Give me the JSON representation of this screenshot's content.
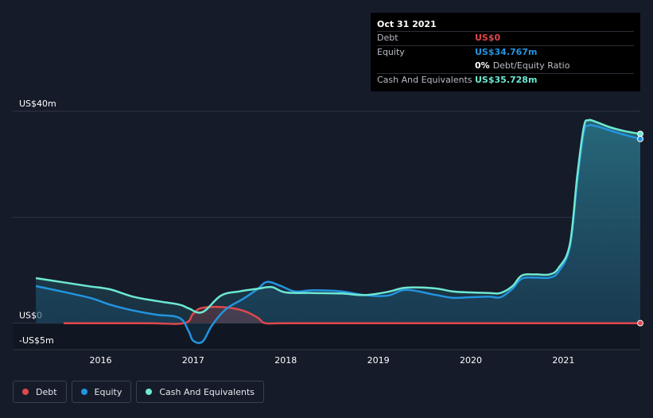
{
  "tooltip": {
    "date": "Oct 31 2021",
    "debt_label": "Debt",
    "debt_value": "US$0",
    "equity_label": "Equity",
    "equity_value": "US$34.767m",
    "ratio_value": "0%",
    "ratio_label": "Debt/Equity Ratio",
    "cash_label": "Cash And Equivalents",
    "cash_value": "US$35.728m"
  },
  "legend": [
    {
      "label": "Debt",
      "color": "#e0474c"
    },
    {
      "label": "Equity",
      "color": "#2394df"
    },
    {
      "label": "Cash And Equivalents",
      "color": "#6ee8d2"
    }
  ],
  "colors": {
    "debt": "#e0474c",
    "equity": "#2394df",
    "cash": "#6ee8d2",
    "grid": "#2e3443",
    "background": "#151b29"
  },
  "chart_data": {
    "type": "line",
    "title": "",
    "xlabel": "",
    "ylabel": "",
    "ylim": [
      -5,
      40
    ],
    "y_ticks": [
      {
        "value": 40,
        "label": "US$40m"
      },
      {
        "value": 0,
        "label": "US$0"
      },
      {
        "value": -5,
        "label": "-US$5m"
      }
    ],
    "x_ticks": [
      {
        "value": 2016.0,
        "label": "2016"
      },
      {
        "value": 2017.0,
        "label": "2017"
      },
      {
        "value": 2018.0,
        "label": "2018"
      },
      {
        "value": 2019.0,
        "label": "2019"
      },
      {
        "value": 2020.0,
        "label": "2020"
      },
      {
        "value": 2021.0,
        "label": "2021"
      }
    ],
    "xlim": [
      2015.05,
      2021.83
    ],
    "series": [
      {
        "name": "Cash And Equivalents",
        "x": [
          2015.3,
          2015.6,
          2015.9,
          2016.1,
          2016.35,
          2016.6,
          2016.85,
          2016.95,
          2017.1,
          2017.3,
          2017.5,
          2017.7,
          2017.85,
          2018.0,
          2018.3,
          2018.6,
          2018.85,
          2019.1,
          2019.3,
          2019.6,
          2019.8,
          2020.0,
          2020.2,
          2020.32,
          2020.45,
          2020.55,
          2020.7,
          2020.85,
          2020.95,
          2021.07,
          2021.15,
          2021.22,
          2021.27,
          2021.35,
          2021.5,
          2021.65,
          2021.83
        ],
        "values": [
          8.5,
          7.7,
          6.9,
          6.4,
          5.0,
          4.2,
          3.5,
          2.8,
          2.1,
          5.2,
          6.0,
          6.5,
          6.8,
          5.8,
          5.7,
          5.6,
          5.3,
          5.9,
          6.7,
          6.6,
          6.0,
          5.8,
          5.7,
          5.7,
          7.0,
          9.0,
          9.2,
          9.2,
          10.5,
          15.0,
          28.0,
          37.0,
          38.3,
          38.0,
          37.0,
          36.3,
          35.728
        ]
      },
      {
        "name": "Equity",
        "x": [
          2015.3,
          2015.6,
          2015.9,
          2016.1,
          2016.35,
          2016.6,
          2016.85,
          2016.95,
          2017.0,
          2017.1,
          2017.2,
          2017.35,
          2017.55,
          2017.7,
          2017.8,
          2017.95,
          2018.1,
          2018.3,
          2018.6,
          2018.85,
          2019.1,
          2019.3,
          2019.6,
          2019.8,
          2020.0,
          2020.2,
          2020.32,
          2020.45,
          2020.55,
          2020.7,
          2020.85,
          2020.95,
          2021.07,
          2021.15,
          2021.22,
          2021.27,
          2021.35,
          2021.5,
          2021.65,
          2021.83
        ],
        "values": [
          7.0,
          5.9,
          4.7,
          3.5,
          2.4,
          1.6,
          1.0,
          -1.5,
          -3.3,
          -3.5,
          -0.5,
          2.6,
          4.7,
          6.5,
          7.8,
          7.0,
          6.0,
          6.2,
          6.0,
          5.3,
          5.2,
          6.3,
          5.4,
          4.8,
          4.9,
          5.0,
          4.9,
          6.5,
          8.4,
          8.6,
          8.6,
          9.8,
          14.5,
          27.0,
          36.0,
          37.3,
          37.2,
          36.4,
          35.6,
          34.767
        ]
      },
      {
        "name": "Debt",
        "x": [
          2015.6,
          2016.5,
          2016.9,
          2017.0,
          2017.1,
          2017.35,
          2017.55,
          2017.7,
          2017.78,
          2018.0,
          2019.0,
          2020.0,
          2021.0,
          2021.83
        ],
        "values": [
          0,
          0,
          0,
          1.8,
          2.9,
          3.0,
          2.3,
          1.0,
          0,
          0,
          0,
          0,
          0,
          0
        ]
      }
    ]
  }
}
